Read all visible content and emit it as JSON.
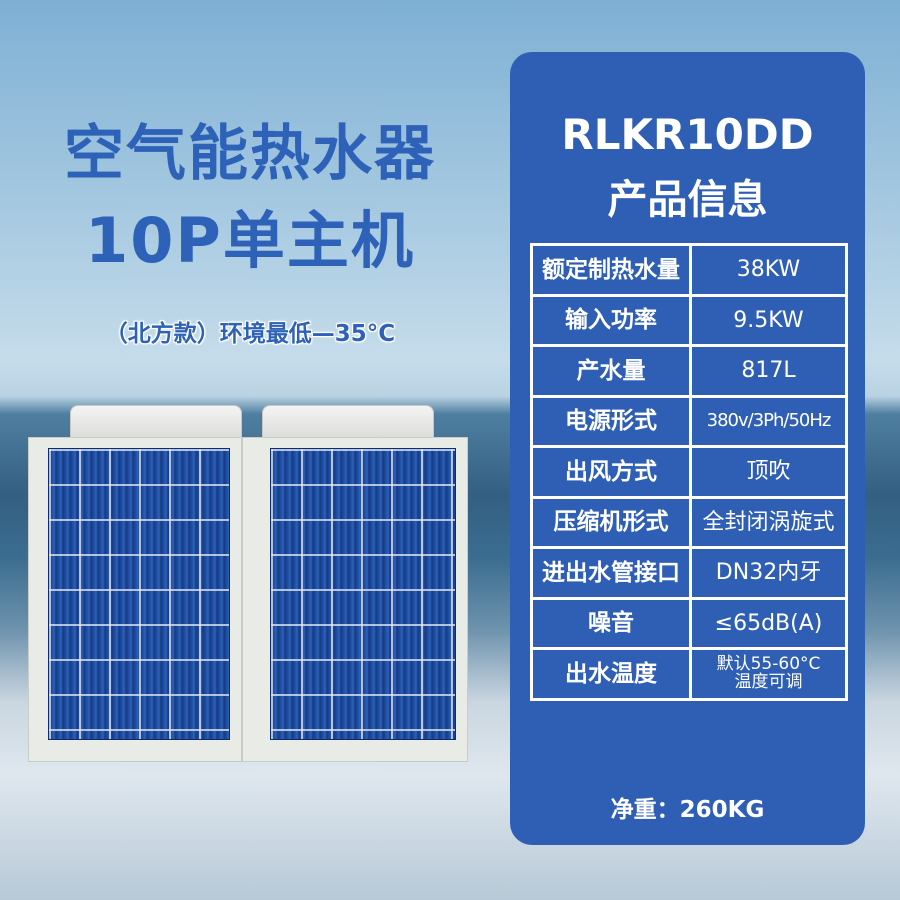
{
  "headline": {
    "line1": "空气能热水器",
    "line2": "10P单主机",
    "subtitle": "（北方款）环境最低—35°C"
  },
  "panel": {
    "model": "RLKR10DD",
    "title": "产品信息",
    "specs": [
      {
        "label": "额定制热水量",
        "value": "38KW"
      },
      {
        "label": "输入功率",
        "value": "9.5KW"
      },
      {
        "label": "产水量",
        "value": "817L"
      },
      {
        "label": "电源形式",
        "value": "380v/3Ph/50Hz"
      },
      {
        "label": "出风方式",
        "value": "顶吹"
      },
      {
        "label": "压缩机形式",
        "value": "全封闭涡旋式"
      },
      {
        "label": "进出水管接口",
        "value": "DN32内牙"
      },
      {
        "label": "噪音",
        "value": "≤65dB(A)"
      },
      {
        "label": "出水温度",
        "value": "默认55-60°C",
        "value2": "温度可调"
      }
    ],
    "weight": "净重：260KG"
  },
  "colors": {
    "brand_blue": "#2f5fb5",
    "title_blue": "#2e62b8"
  }
}
